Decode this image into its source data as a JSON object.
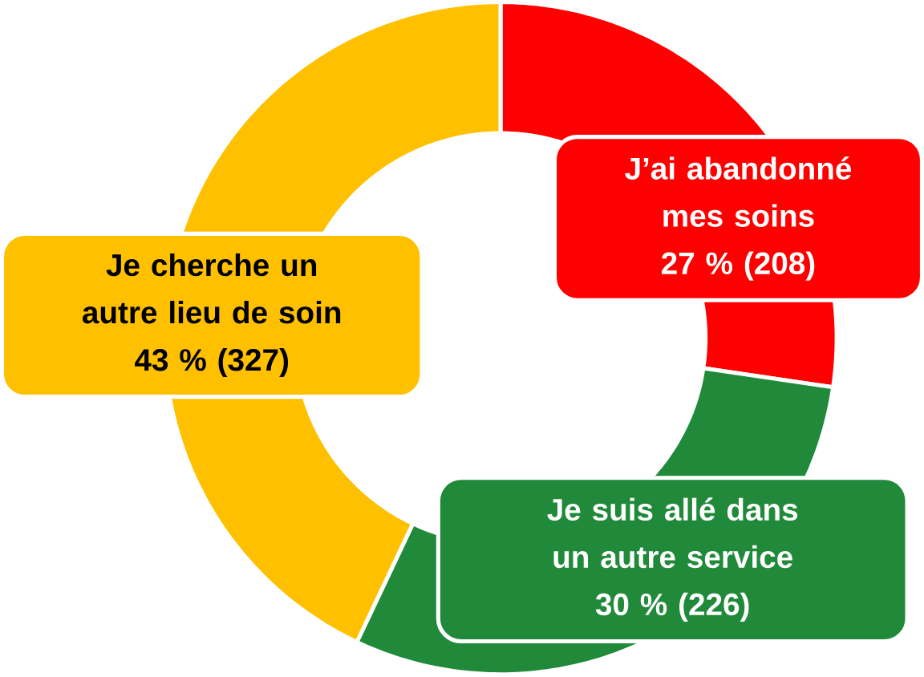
{
  "chart_data": {
    "type": "donut",
    "categories": [
      "J’ai abandonné mes soins",
      "Je suis allé dans un autre service",
      "Je cherche un autre lieu de soin"
    ],
    "values": [
      208,
      226,
      327
    ],
    "colors": [
      "#ff0000",
      "#218a3a",
      "#ffc000"
    ],
    "value_labels": [
      "27 % (208)",
      "30 % (226)",
      "43 % (327)"
    ]
  }
}
